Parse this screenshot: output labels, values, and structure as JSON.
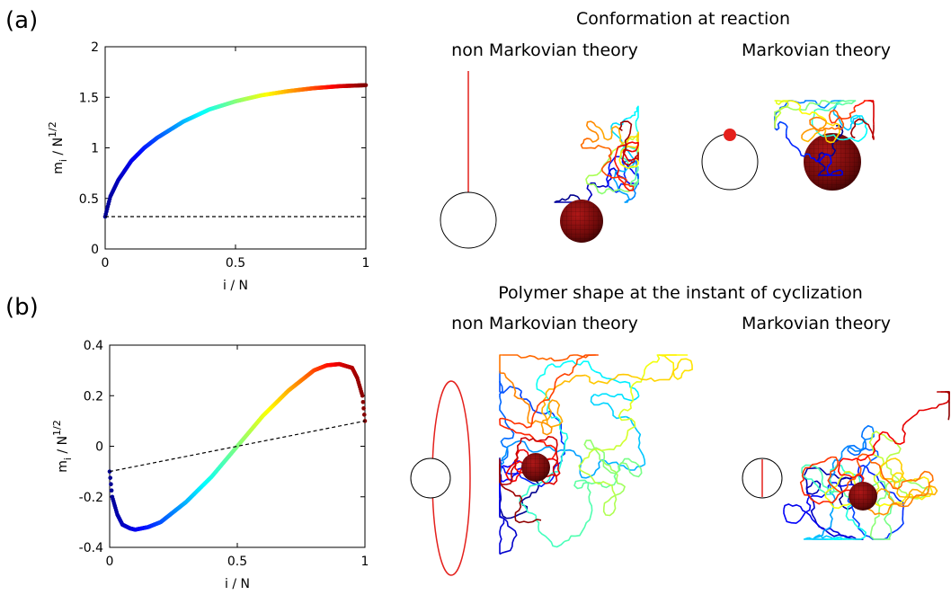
{
  "panels": [
    {
      "label": "(a)",
      "title": "Conformation at reaction",
      "left_subtitle": "non Markovian theory",
      "right_subtitle": "Markovian theory"
    },
    {
      "label": "(b)",
      "title": "Polymer shape at the instant of cyclization",
      "left_subtitle": "non Markovian theory",
      "right_subtitle": "Markovian theory"
    }
  ],
  "chart_data": [
    {
      "type": "line",
      "xlabel": "i / N",
      "ylabel_main": "m",
      "ylabel_sub": "i",
      "ylabel_rest": " / N",
      "ylabel_sup": "1/2",
      "xlim": [
        0,
        1
      ],
      "ylim": [
        0,
        2
      ],
      "xticks": [
        0,
        0.5,
        1
      ],
      "xtick_labels": [
        "0",
        "0.5",
        "1"
      ],
      "yticks": [
        0,
        0.5,
        1,
        1.5,
        2
      ],
      "ytick_labels": [
        "0",
        "0.5",
        "1",
        "1.5",
        "2"
      ],
      "series": [
        {
          "style": "colored-points",
          "x": [
            0,
            0.02,
            0.05,
            0.1,
            0.15,
            0.2,
            0.3,
            0.4,
            0.5,
            0.6,
            0.7,
            0.8,
            0.9,
            1.0
          ],
          "y": [
            0.32,
            0.52,
            0.68,
            0.87,
            1.0,
            1.1,
            1.26,
            1.38,
            1.46,
            1.52,
            1.56,
            1.59,
            1.61,
            1.62
          ]
        },
        {
          "style": "dashed",
          "x": [
            0,
            1
          ],
          "y": [
            0.32,
            0.32
          ]
        }
      ],
      "grid": false
    },
    {
      "type": "line",
      "xlabel": "i / N",
      "ylabel_main": "m",
      "ylabel_sub": "i",
      "ylabel_rest": " / N",
      "ylabel_sup": "1/2",
      "xlim": [
        0,
        1
      ],
      "ylim": [
        -0.4,
        0.4
      ],
      "xticks": [
        0,
        0.5,
        1
      ],
      "xtick_labels": [
        "0",
        "0.5",
        "1"
      ],
      "yticks": [
        -0.4,
        -0.2,
        0,
        0.2,
        0.4
      ],
      "ytick_labels": [
        "-0.4",
        "-0.2",
        "0",
        "0.2",
        "0.4"
      ],
      "series": [
        {
          "style": "colored-points",
          "x": [
            0,
            0.01,
            0.03,
            0.05,
            0.08,
            0.1,
            0.15,
            0.2,
            0.3,
            0.4,
            0.5,
            0.6,
            0.7,
            0.8,
            0.85,
            0.9,
            0.95,
            0.97,
            0.99,
            1.0
          ],
          "y": [
            -0.1,
            -0.2,
            -0.27,
            -0.31,
            -0.325,
            -0.33,
            -0.32,
            -0.3,
            -0.22,
            -0.12,
            0.0,
            0.12,
            0.22,
            0.3,
            0.32,
            0.325,
            0.31,
            0.27,
            0.2,
            0.1
          ]
        },
        {
          "style": "dashed",
          "x": [
            0,
            1
          ],
          "y": [
            -0.1,
            0.1
          ]
        }
      ],
      "grid": false
    }
  ],
  "colors": {
    "axis": "#000000",
    "dashed": "#000000",
    "line_model": "#e4201c",
    "sphere": "#7a0c0c",
    "colormap": [
      "#00008f",
      "#0000ff",
      "#0080ff",
      "#00ffff",
      "#80ff80",
      "#ffff00",
      "#ff8000",
      "#ff0000",
      "#800000"
    ]
  }
}
